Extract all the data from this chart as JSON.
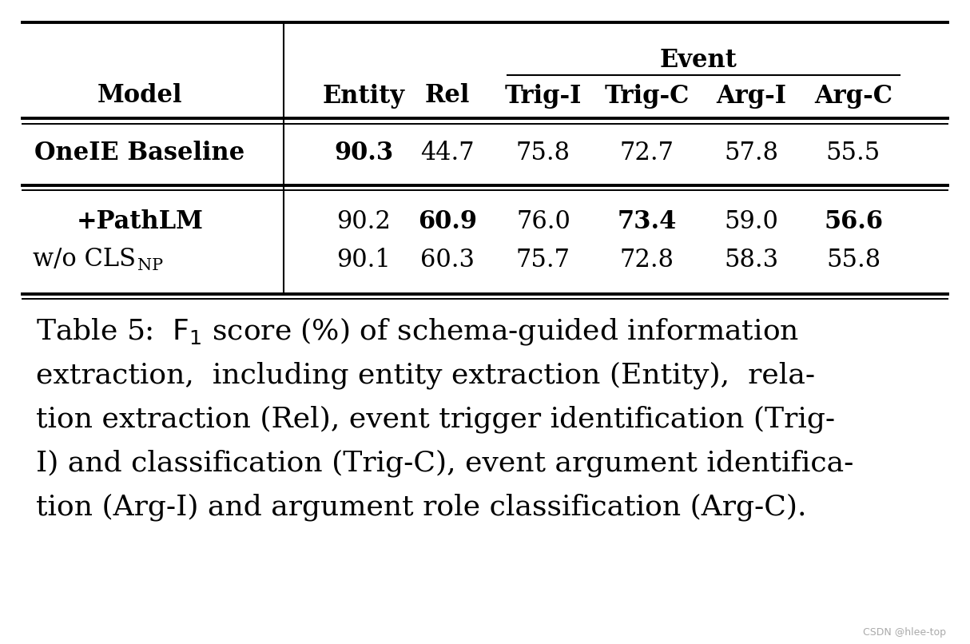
{
  "bg_color": "#ffffff",
  "rows": [
    {
      "model": "OneIE Baseline",
      "model_bold": true,
      "vals": [
        "90.3",
        "44.7",
        "75.8",
        "72.7",
        "57.8",
        "55.5"
      ],
      "bolds": [
        true,
        false,
        false,
        false,
        false,
        false
      ]
    },
    {
      "model": "+PathLM",
      "model_bold": true,
      "vals": [
        "90.2",
        "60.9",
        "76.0",
        "73.4",
        "59.0",
        "56.6"
      ],
      "bolds": [
        false,
        true,
        false,
        true,
        false,
        true
      ]
    },
    {
      "model": "w/o CLS_NP",
      "model_bold": false,
      "vals": [
        "90.1",
        "60.3",
        "75.7",
        "72.8",
        "58.3",
        "55.8"
      ],
      "bolds": [
        false,
        false,
        false,
        false,
        false,
        false
      ]
    }
  ],
  "col_labels": [
    "Entity",
    "Rel",
    "Trig-I",
    "Trig-C",
    "Arg-I",
    "Arg-C"
  ],
  "event_label": "Event",
  "watermark": "CSDN @hlee-top",
  "caption_lines": [
    "extraction,  including entity extraction (Entity),  rela-",
    "tion extraction (Rel), event trigger identification (Trig-",
    "I) and classification (Trig-C), event argument identifica-",
    "tion (Arg-I) and argument role classification (Arg-C)."
  ]
}
